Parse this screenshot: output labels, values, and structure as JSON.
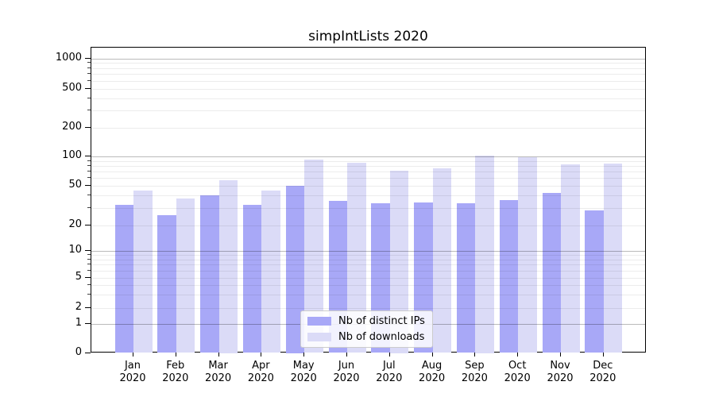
{
  "chart_data": {
    "type": "bar",
    "title": "simpIntLists 2020",
    "months": [
      "Jan",
      "Feb",
      "Mar",
      "Apr",
      "May",
      "Jun",
      "Jul",
      "Aug",
      "Sep",
      "Oct",
      "Nov",
      "Dec"
    ],
    "year": "2020",
    "series": [
      {
        "name": "Nb of distinct IPs",
        "color": "#a8a8f7",
        "values": [
          32,
          25,
          40,
          32,
          50,
          35,
          33,
          34,
          33,
          36,
          42,
          28
        ]
      },
      {
        "name": "Nb of downloads",
        "color": "#dbdbf7",
        "values": [
          45,
          37,
          57,
          45,
          93,
          86,
          72,
          76,
          102,
          98,
          83,
          85
        ]
      }
    ],
    "yscale": "symlog",
    "ytick_labels": [
      "0",
      "1",
      "2",
      "5",
      "10",
      "20",
      "50",
      "100",
      "200",
      "500",
      "1000"
    ],
    "yticks": [
      0,
      1,
      2,
      5,
      10,
      20,
      50,
      100,
      200,
      500,
      1000
    ],
    "ylim": [
      0,
      1200
    ],
    "xlabel": "",
    "ylabel": "",
    "grid": true,
    "legend_position": "lower center"
  }
}
